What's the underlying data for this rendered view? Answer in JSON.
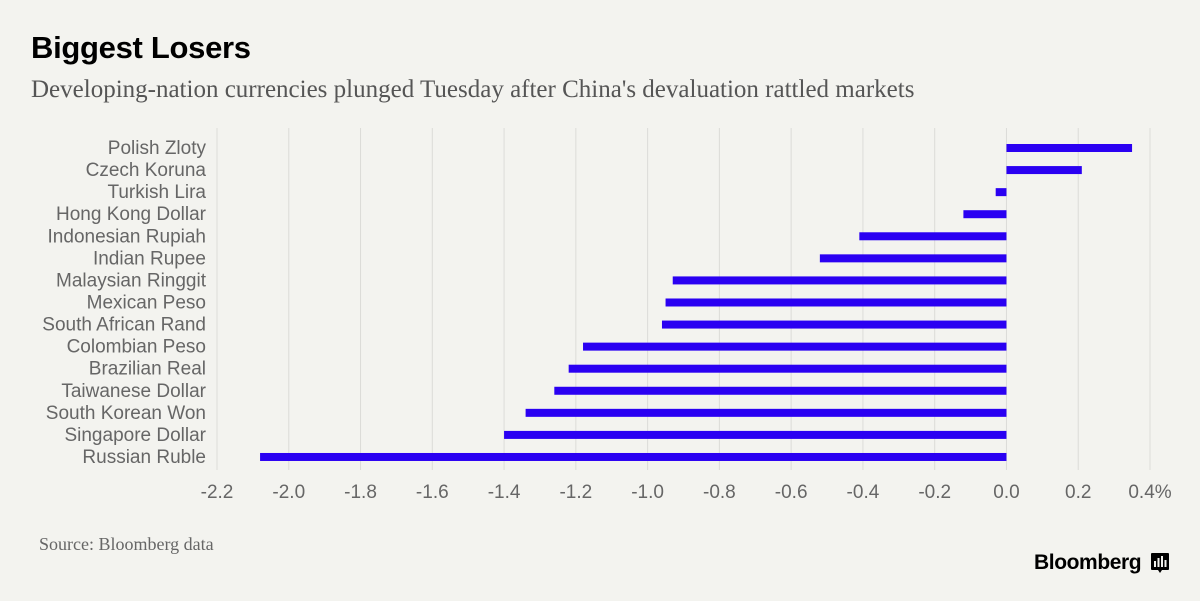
{
  "title": "Biggest Losers",
  "subtitle": "Developing-nation currencies plunged Tuesday after China's devaluation rattled markets",
  "source": "Source: Bloomberg data",
  "brand": {
    "name": "Bloomberg",
    "icon": "bloomberg-chart-icon"
  },
  "colors": {
    "bar": "#2a00f2",
    "grid": "#dcdcd8",
    "background": "#f3f3ef",
    "tick_text": "#666666"
  },
  "chart_data": {
    "type": "bar",
    "orientation": "horizontal",
    "categories": [
      "Polish Zloty",
      "Czech Koruna",
      "Turkish Lira",
      "Hong Kong Dollar",
      "Indonesian Rupiah",
      "Indian Rupee",
      "Malaysian Ringgit",
      "Mexican Peso",
      "South African Rand",
      "Colombian Peso",
      "Brazilian Real",
      "Taiwanese Dollar",
      "South Korean Won",
      "Singapore Dollar",
      "Russian Ruble"
    ],
    "values": [
      0.35,
      0.21,
      -0.03,
      -0.12,
      -0.41,
      -0.52,
      -0.93,
      -0.95,
      -0.96,
      -1.18,
      -1.22,
      -1.26,
      -1.34,
      -1.4,
      -2.08
    ],
    "xlim": [
      -2.2,
      0.4
    ],
    "xticks": [
      -2.2,
      -2.0,
      -1.8,
      -1.6,
      -1.4,
      -1.2,
      -1.0,
      -0.8,
      -0.6,
      -0.4,
      -0.2,
      0.0,
      0.2,
      0.4
    ],
    "xtick_labels": [
      "-2.2",
      "-2.0",
      "-1.8",
      "-1.6",
      "-1.4",
      "-1.2",
      "-1.0",
      "-0.8",
      "-0.6",
      "-0.4",
      "-0.2",
      "0.0",
      "0.2",
      "0.4%"
    ],
    "grid": true
  }
}
